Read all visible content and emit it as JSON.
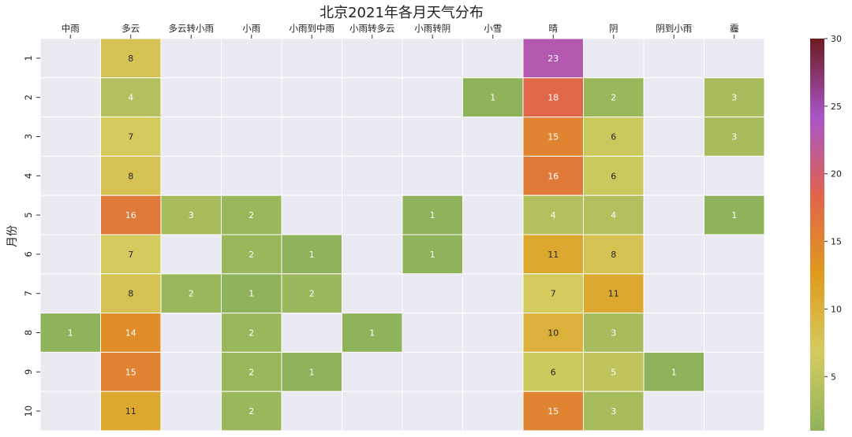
{
  "chart_data": {
    "type": "heatmap",
    "title": "北京2021年各月天气分布",
    "ylabel": "月份",
    "xlabel": "",
    "columns": [
      "中雨",
      "多云",
      "多云转小雨",
      "小雨",
      "小雨到中雨",
      "小雨转多云",
      "小雨转阴",
      "小雪",
      "晴",
      "阴",
      "阴到小雨",
      "霾"
    ],
    "rows": [
      "1",
      "2",
      "3",
      "4",
      "5",
      "6",
      "7",
      "8",
      "9",
      "10"
    ],
    "values": [
      [
        null,
        8,
        null,
        null,
        null,
        null,
        null,
        null,
        23,
        null,
        null,
        null
      ],
      [
        null,
        4,
        null,
        null,
        null,
        null,
        null,
        1,
        18,
        2,
        null,
        3
      ],
      [
        null,
        7,
        null,
        null,
        null,
        null,
        null,
        null,
        15,
        6,
        null,
        3
      ],
      [
        null,
        8,
        null,
        null,
        null,
        null,
        null,
        null,
        16,
        6,
        null,
        null
      ],
      [
        null,
        16,
        3,
        2,
        null,
        null,
        1,
        null,
        4,
        4,
        null,
        1
      ],
      [
        null,
        7,
        null,
        2,
        1,
        null,
        1,
        null,
        11,
        8,
        null,
        null
      ],
      [
        null,
        8,
        2,
        1,
        2,
        null,
        null,
        null,
        7,
        11,
        null,
        null
      ],
      [
        1,
        14,
        null,
        2,
        null,
        1,
        null,
        null,
        10,
        3,
        null,
        null
      ],
      [
        null,
        15,
        null,
        2,
        1,
        null,
        null,
        null,
        6,
        5,
        1,
        null
      ],
      [
        null,
        11,
        null,
        2,
        null,
        null,
        null,
        null,
        15,
        3,
        null,
        null
      ]
    ],
    "colorbar": {
      "min": 1,
      "max": 30,
      "ticks": [
        5,
        10,
        15,
        20,
        25,
        30
      ]
    },
    "colors": {
      "empty_cell": "#eaeaf2",
      "stops": [
        "#8fb35a",
        "#d4cc5f",
        "#e09a1e",
        "#e0644c",
        "#a955c9",
        "#6d1a1f"
      ]
    }
  }
}
